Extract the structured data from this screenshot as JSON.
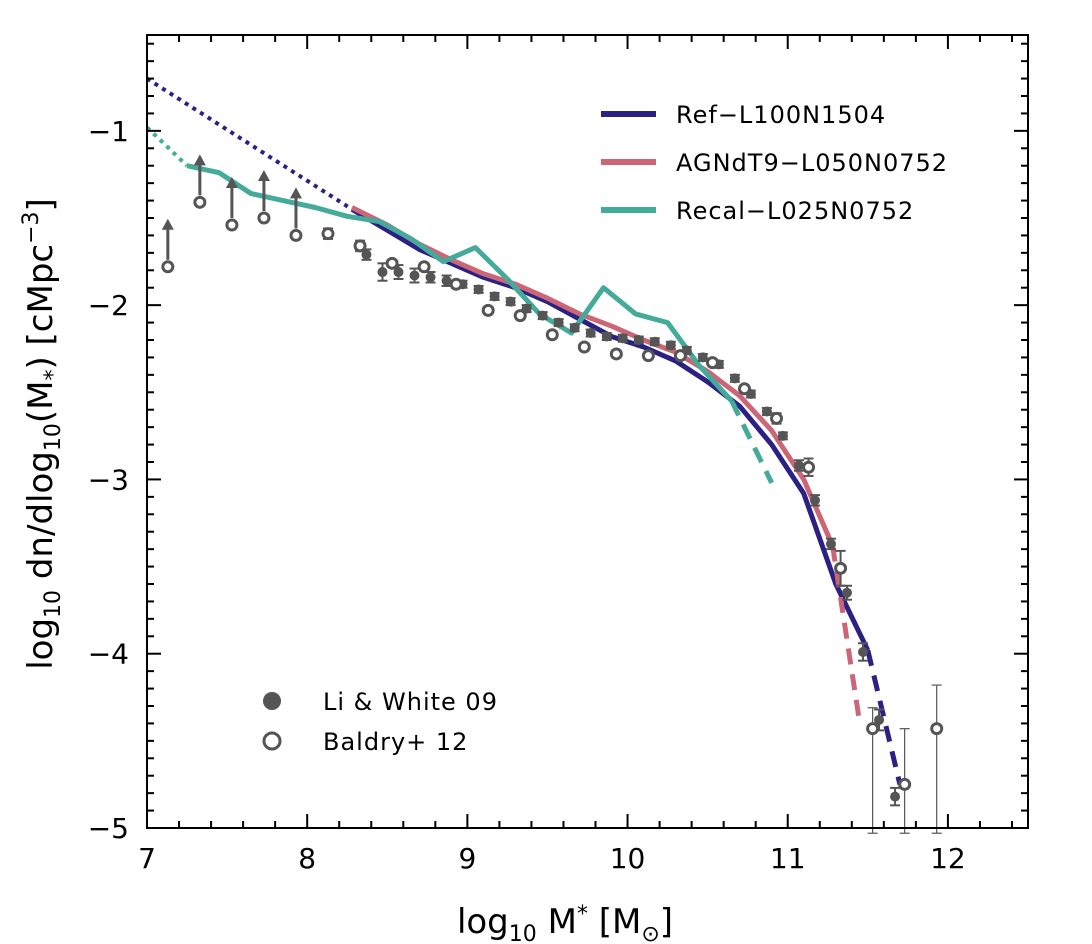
{
  "chart_data": {
    "type": "line",
    "xlabel": "log10 M* [M⊙]",
    "ylabel": "log10 dn/dlog10(M*) [cMpc−3]",
    "xlim": [
      7,
      12.5
    ],
    "ylim": [
      -5,
      -0.45
    ],
    "xticks": [
      "7",
      "8",
      "9",
      "10",
      "11",
      "12"
    ],
    "yticks": [
      "−1",
      "−2",
      "−3",
      "−4",
      "−5"
    ],
    "colors": {
      "ref": "#2b2185",
      "agn": "#cc6677",
      "recal": "#44aa99",
      "obs": "#555555"
    },
    "series": [
      {
        "name": "Ref−L100N1504",
        "color": "#2b2185",
        "segments": [
          {
            "style": "dotted",
            "x": [
              7.0,
              8.28
            ],
            "y": [
              -0.7,
              -1.45
            ]
          },
          {
            "style": "solid",
            "x": [
              8.28,
              8.5,
              8.7,
              8.9,
              9.1,
              9.3,
              9.5,
              9.7,
              9.9,
              10.1,
              10.3,
              10.5,
              10.7,
              10.9,
              11.1,
              11.3,
              11.5
            ],
            "y": [
              -1.45,
              -1.57,
              -1.68,
              -1.76,
              -1.84,
              -1.9,
              -1.98,
              -2.08,
              -2.18,
              -2.24,
              -2.32,
              -2.44,
              -2.58,
              -2.8,
              -3.08,
              -3.6,
              -3.98
            ]
          },
          {
            "style": "dashed",
            "x": [
              11.5,
              11.7
            ],
            "y": [
              -3.98,
              -4.75
            ]
          }
        ]
      },
      {
        "name": "AGNdT9−L050N0752",
        "color": "#cc6677",
        "segments": [
          {
            "style": "solid",
            "x": [
              8.28,
              8.5,
              8.7,
              8.9,
              9.1,
              9.3,
              9.5,
              9.7,
              9.9,
              10.1,
              10.3,
              10.5,
              10.7,
              10.9,
              11.1,
              11.28
            ],
            "y": [
              -1.44,
              -1.54,
              -1.65,
              -1.74,
              -1.82,
              -1.88,
              -1.96,
              -2.05,
              -2.12,
              -2.2,
              -2.27,
              -2.38,
              -2.52,
              -2.72,
              -3.0,
              -3.38
            ]
          },
          {
            "style": "dashed",
            "x": [
              11.28,
              11.45
            ],
            "y": [
              -3.38,
              -4.4
            ]
          }
        ]
      },
      {
        "name": "Recal−L025N0752",
        "color": "#44aa99",
        "segments": [
          {
            "style": "dotted",
            "x": [
              7.0,
              7.25
            ],
            "y": [
              -0.98,
              -1.2
            ]
          },
          {
            "style": "solid",
            "x": [
              7.25,
              7.45,
              7.65,
              7.85,
              8.05,
              8.25,
              8.45,
              8.65,
              8.85,
              9.05,
              9.25,
              9.45,
              9.65,
              9.85,
              10.05,
              10.25,
              10.45,
              10.65
            ],
            "y": [
              -1.2,
              -1.24,
              -1.36,
              -1.4,
              -1.44,
              -1.49,
              -1.52,
              -1.62,
              -1.75,
              -1.67,
              -1.85,
              -2.05,
              -2.16,
              -1.9,
              -2.05,
              -2.1,
              -2.35,
              -2.55
            ]
          },
          {
            "style": "dashed",
            "x": [
              10.65,
              10.9
            ],
            "y": [
              -2.55,
              -3.02
            ]
          }
        ]
      }
    ],
    "observations": [
      {
        "name": "Li & White 09",
        "marker": "filled",
        "points": [
          {
            "x": 8.37,
            "y": -1.71,
            "err": 0.03
          },
          {
            "x": 8.47,
            "y": -1.81,
            "err": 0.05
          },
          {
            "x": 8.57,
            "y": -1.81,
            "err": 0.04
          },
          {
            "x": 8.67,
            "y": -1.83,
            "err": 0.04
          },
          {
            "x": 8.77,
            "y": -1.84,
            "err": 0.03
          },
          {
            "x": 8.87,
            "y": -1.86,
            "err": 0.03
          },
          {
            "x": 8.97,
            "y": -1.88,
            "err": 0.02
          },
          {
            "x": 9.07,
            "y": -1.91,
            "err": 0.02
          },
          {
            "x": 9.17,
            "y": -1.95,
            "err": 0.02
          },
          {
            "x": 9.27,
            "y": -1.98,
            "err": 0.02
          },
          {
            "x": 9.37,
            "y": -2.02,
            "err": 0.02
          },
          {
            "x": 9.47,
            "y": -2.06,
            "err": 0.02
          },
          {
            "x": 9.57,
            "y": -2.1,
            "err": 0.02
          },
          {
            "x": 9.67,
            "y": -2.13,
            "err": 0.02
          },
          {
            "x": 9.77,
            "y": -2.16,
            "err": 0.02
          },
          {
            "x": 9.87,
            "y": -2.18,
            "err": 0.02
          },
          {
            "x": 9.97,
            "y": -2.19,
            "err": 0.02
          },
          {
            "x": 10.07,
            "y": -2.2,
            "err": 0.02
          },
          {
            "x": 10.17,
            "y": -2.21,
            "err": 0.02
          },
          {
            "x": 10.27,
            "y": -2.23,
            "err": 0.02
          },
          {
            "x": 10.37,
            "y": -2.26,
            "err": 0.02
          },
          {
            "x": 10.47,
            "y": -2.3,
            "err": 0.02
          },
          {
            "x": 10.57,
            "y": -2.34,
            "err": 0.02
          },
          {
            "x": 10.67,
            "y": -2.42,
            "err": 0.02
          },
          {
            "x": 10.77,
            "y": -2.51,
            "err": 0.02
          },
          {
            "x": 10.87,
            "y": -2.61,
            "err": 0.02
          },
          {
            "x": 10.97,
            "y": -2.75,
            "err": 0.02
          },
          {
            "x": 11.07,
            "y": -2.92,
            "err": 0.03
          },
          {
            "x": 11.17,
            "y": -3.12,
            "err": 0.03
          },
          {
            "x": 11.27,
            "y": -3.37,
            "err": 0.03
          },
          {
            "x": 11.37,
            "y": -3.65,
            "err": 0.04
          },
          {
            "x": 11.47,
            "y": -3.99,
            "err": 0.05
          },
          {
            "x": 11.57,
            "y": -4.38,
            "err": 0.06
          },
          {
            "x": 11.67,
            "y": -4.82,
            "err": 0.05
          }
        ]
      },
      {
        "name": "Baldry+ 12",
        "marker": "open",
        "points": [
          {
            "x": 7.13,
            "y": -1.78,
            "lower_limit": true
          },
          {
            "x": 7.33,
            "y": -1.41,
            "lower_limit": true
          },
          {
            "x": 7.53,
            "y": -1.54,
            "lower_limit": true
          },
          {
            "x": 7.73,
            "y": -1.5,
            "lower_limit": true
          },
          {
            "x": 7.93,
            "y": -1.6,
            "lower_limit": true
          },
          {
            "x": 8.13,
            "y": -1.59,
            "err": 0.03
          },
          {
            "x": 8.33,
            "y": -1.66,
            "err": 0.03
          },
          {
            "x": 8.53,
            "y": -1.76,
            "err": 0.02
          },
          {
            "x": 8.73,
            "y": -1.78,
            "err": 0.02
          },
          {
            "x": 8.93,
            "y": -1.88,
            "err": 0.02
          },
          {
            "x": 9.13,
            "y": -2.03,
            "err": 0.02
          },
          {
            "x": 9.33,
            "y": -2.06,
            "err": 0.02
          },
          {
            "x": 9.53,
            "y": -2.17,
            "err": 0.02
          },
          {
            "x": 9.73,
            "y": -2.24,
            "err": 0.02
          },
          {
            "x": 9.93,
            "y": -2.28,
            "err": 0.02
          },
          {
            "x": 10.13,
            "y": -2.29,
            "err": 0.02
          },
          {
            "x": 10.33,
            "y": -2.29,
            "err": 0.02
          },
          {
            "x": 10.53,
            "y": -2.33,
            "err": 0.02
          },
          {
            "x": 10.73,
            "y": -2.48,
            "err": 0.02
          },
          {
            "x": 10.93,
            "y": -2.65,
            "err": 0.03
          },
          {
            "x": 11.13,
            "y": -2.93,
            "err": 0.05
          },
          {
            "x": 11.33,
            "y": -3.51,
            "err": 0.1
          },
          {
            "x": 11.53,
            "y": -4.43,
            "err_lo": 0.6,
            "err_hi": 0.12
          },
          {
            "x": 11.73,
            "y": -4.75,
            "err_lo": 0.28,
            "err_hi": 0.32
          },
          {
            "x": 11.93,
            "y": -4.43,
            "err_lo": 0.6,
            "err_hi": 0.25
          }
        ]
      }
    ],
    "legend": {
      "series_position": "top-right",
      "obs_position": "bottom-left",
      "series_labels": [
        "Ref−L100N1504",
        "AGNdT9−L050N0752",
        "Recal−L025N0752"
      ],
      "obs_labels": [
        "Li & White 09",
        "Baldry+ 12"
      ]
    },
    "grid": false
  }
}
